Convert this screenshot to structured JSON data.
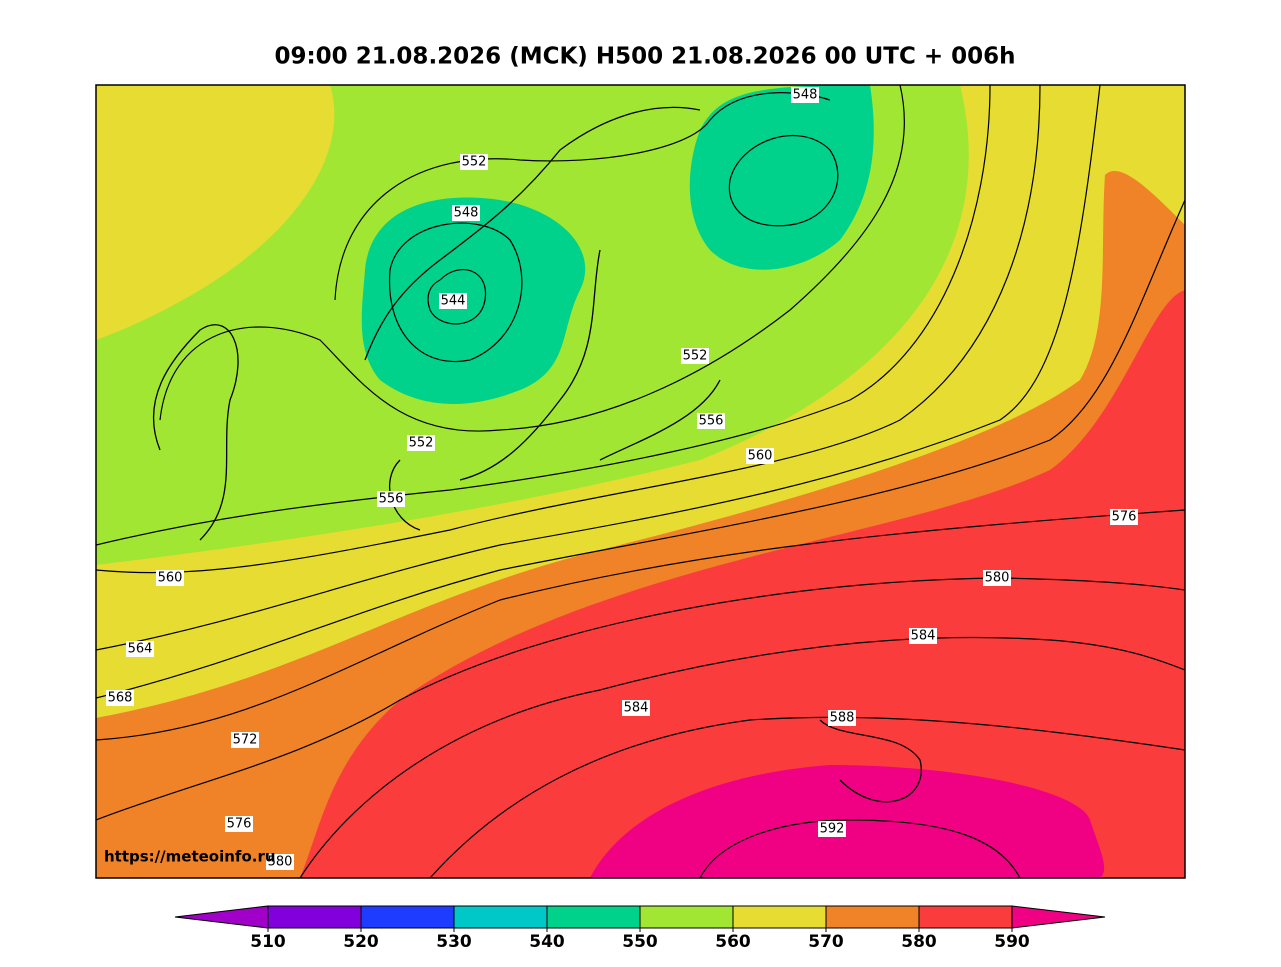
{
  "title": "09:00 21.08.2026 (MCK) H500  21.08.2026 00 UTC + 006h",
  "source": "https://meteoinfo.ru",
  "contour_labels": [
    "548",
    "552",
    "548",
    "544",
    "552",
    "552",
    "556",
    "560",
    "556",
    "560",
    "564",
    "568",
    "572",
    "576",
    "576",
    "580",
    "584",
    "584",
    "588",
    "592",
    "580"
  ],
  "colorbar": {
    "ticks": [
      510,
      520,
      530,
      540,
      550,
      560,
      570,
      580,
      590
    ],
    "colors": [
      "#a000c8",
      "#8200dc",
      "#1e3cff",
      "#00c8c8",
      "#00d28c",
      "#a0e632",
      "#e6dc32",
      "#f08228",
      "#fa3c3c",
      "#f00082"
    ]
  }
}
